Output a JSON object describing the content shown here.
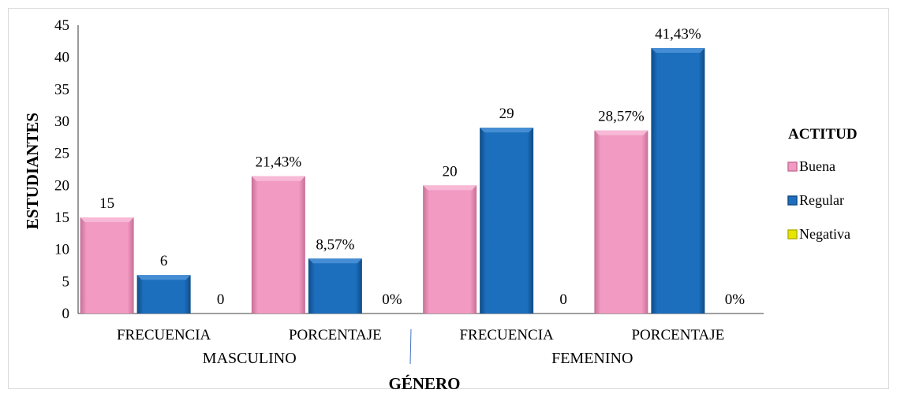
{
  "chart_data": {
    "type": "bar",
    "title": "",
    "xlabel": "GÉNERO",
    "ylabel": "ESTUDIANTES",
    "ylim": [
      0,
      45
    ],
    "yticks": [
      0,
      5,
      10,
      15,
      20,
      25,
      30,
      35,
      40,
      45
    ],
    "ytick_labels": [
      "0",
      "5",
      "10",
      "15",
      "20",
      "25",
      "30",
      "35",
      "40",
      "45"
    ],
    "grid": false,
    "legend": {
      "title": "ACTITUD",
      "position": "right"
    },
    "groups": [
      {
        "label": "MASCULINO",
        "categories": [
          "FRECUENCIA",
          "PORCENTAJE"
        ]
      },
      {
        "label": "FEMENINO",
        "categories": [
          "FRECUENCIA",
          "PORCENTAJE"
        ]
      }
    ],
    "categories": [
      "FRECUENCIA",
      "PORCENTAJE",
      "FRECUENCIA",
      "PORCENTAJE"
    ],
    "series": [
      {
        "name": "Buena",
        "color": "#f29ac2",
        "values": [
          15,
          21.43,
          20,
          28.57
        ],
        "labels": [
          "15",
          "21,43%",
          "20",
          "28,57%"
        ]
      },
      {
        "name": "Regular",
        "color": "#1c6fbd",
        "values": [
          6,
          8.57,
          29,
          41.43
        ],
        "labels": [
          "6",
          "8,57%",
          "29",
          "41,43%"
        ]
      },
      {
        "name": "Negativa",
        "color": "#e6e600",
        "values": [
          0,
          0,
          0,
          0
        ],
        "labels": [
          "0",
          "0%",
          "0",
          "0%"
        ]
      }
    ]
  }
}
